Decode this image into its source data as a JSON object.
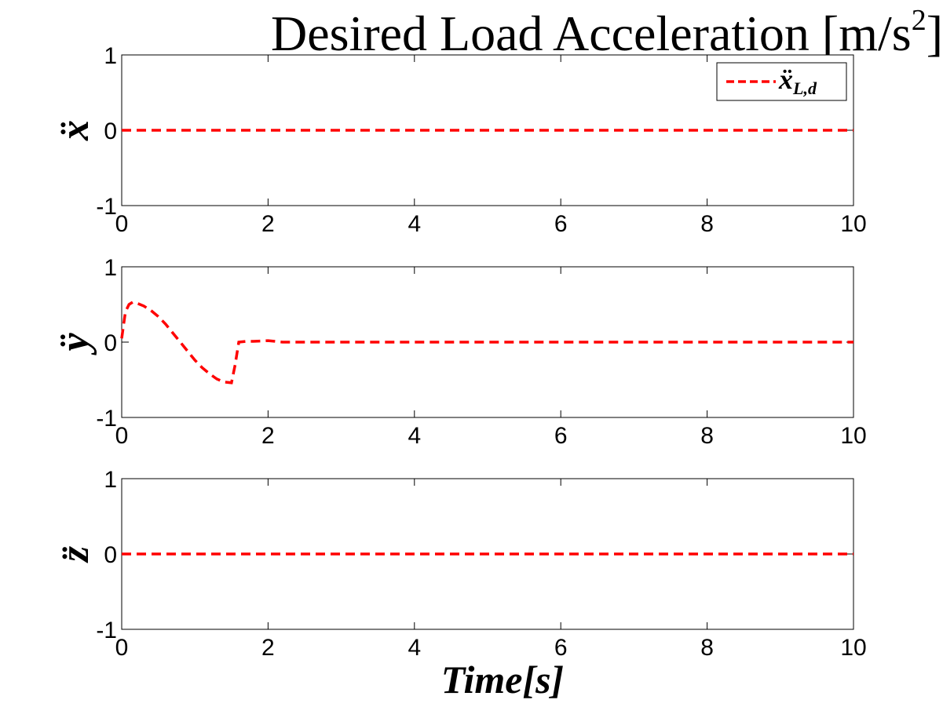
{
  "chart_data": {
    "type": "line",
    "title": "Desired Load Acceleration [m/s",
    "title_sup": "2",
    "title_end": "]",
    "xlabel": "Time[s]",
    "xlim": [
      0,
      10
    ],
    "xticks": [
      "0",
      "2",
      "4",
      "6",
      "8",
      "10"
    ],
    "legend": {
      "placement": "top-right",
      "symbol": "ẍ",
      "subscript": "L,d"
    },
    "line_color": "#ff0000",
    "line_style": "dashed",
    "grid": false,
    "subplots": [
      {
        "ylabel": "ẍ",
        "ylim": [
          -1,
          1
        ],
        "yticks": [
          "-1",
          "0",
          "1"
        ],
        "series": [
          {
            "x": [
              0,
              10
            ],
            "y": [
              0,
              0
            ]
          }
        ]
      },
      {
        "ylabel": "ÿ",
        "ylim": [
          -1,
          1
        ],
        "yticks": [
          "-1",
          "0",
          "1"
        ],
        "series": [
          {
            "x": [
              0,
              0.05,
              0.1,
              0.15,
              0.2,
              0.3,
              0.4,
              0.5,
              0.6,
              0.7,
              0.8,
              0.9,
              1.0,
              1.1,
              1.2,
              1.3,
              1.4,
              1.5,
              1.55,
              1.6,
              1.7,
              1.8,
              2.0,
              2.2,
              2.5,
              3,
              4,
              5,
              6,
              7,
              8,
              9,
              10
            ],
            "y": [
              0.05,
              0.4,
              0.5,
              0.53,
              0.52,
              0.48,
              0.42,
              0.34,
              0.24,
              0.12,
              0.0,
              -0.12,
              -0.24,
              -0.34,
              -0.42,
              -0.49,
              -0.53,
              -0.54,
              -0.3,
              0.0,
              0.01,
              0.01,
              0.02,
              0.0,
              0.0,
              0.0,
              0.0,
              0.0,
              0.0,
              0.0,
              0.0,
              0.0,
              0.0
            ]
          }
        ]
      },
      {
        "ylabel": "z̈",
        "ylim": [
          -1,
          1
        ],
        "yticks": [
          "-1",
          "0",
          "1"
        ],
        "series": [
          {
            "x": [
              0,
              10
            ],
            "y": [
              0,
              0
            ]
          }
        ]
      }
    ]
  }
}
